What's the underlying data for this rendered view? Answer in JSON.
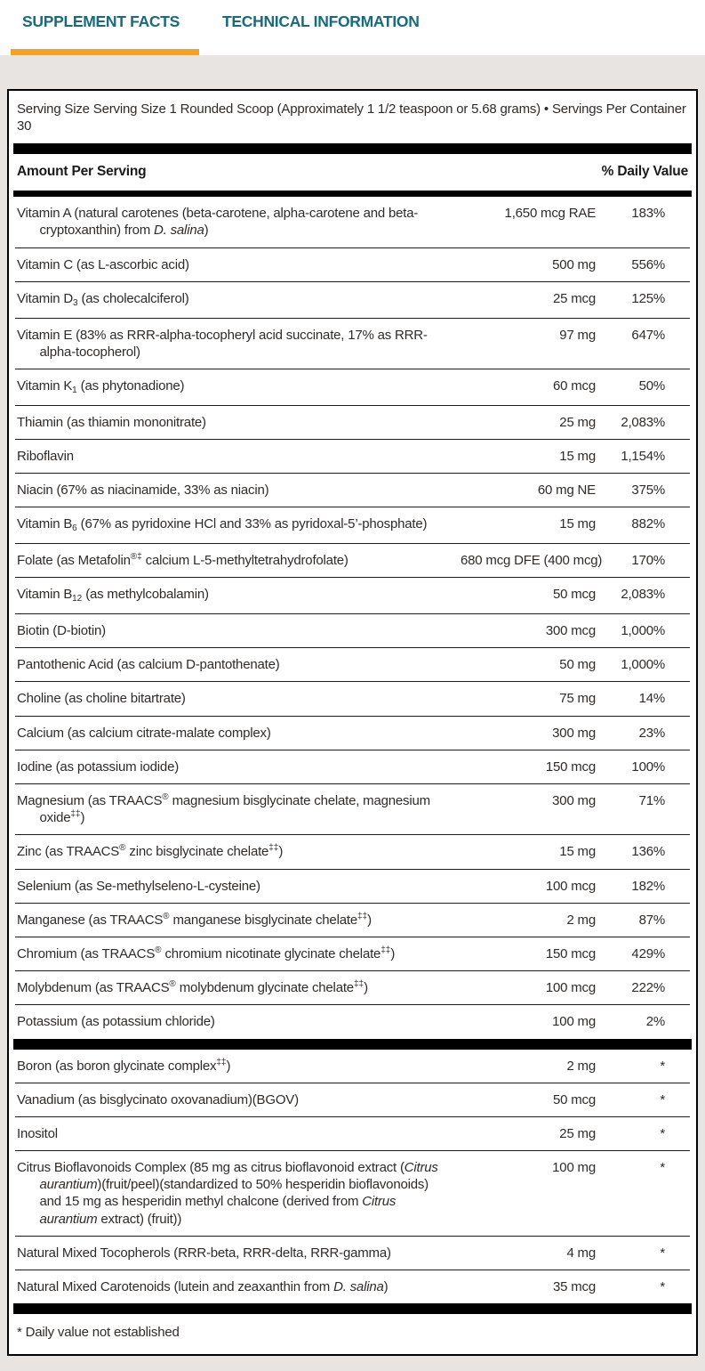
{
  "colors": {
    "tab_text": "#176b7c",
    "active_tab_underline": "#f5a31b",
    "panel_background": "#e8e4e1",
    "table_border": "#000000"
  },
  "tabs": [
    {
      "label": "SUPPLEMENT FACTS",
      "active": true
    },
    {
      "label": "TECHNICAL INFORMATION",
      "active": false
    }
  ],
  "supplement_facts": {
    "serving_line": "Serving Size Serving Size 1 Rounded Scoop (Approximately 1 1/2 teaspoon or 5.68 grams) • Servings Per Container 30",
    "header": {
      "amount_label": "Amount Per Serving",
      "dv_label": "% Daily Value"
    },
    "main_rows": [
      {
        "name_parts": [
          {
            "t": "Vitamin A (natural carotenes (beta-carotene, alpha-carotene and beta-cryptoxanthin) from "
          },
          {
            "t": "D. salina",
            "s": "i"
          },
          {
            "t": ")"
          }
        ],
        "amount": "1,650 mcg RAE",
        "dv": "183%"
      },
      {
        "name_parts": [
          {
            "t": "Vitamin C (as L-ascorbic acid)"
          }
        ],
        "amount": "500 mg",
        "dv": "556%"
      },
      {
        "name_parts": [
          {
            "t": "Vitamin D"
          },
          {
            "t": "3",
            "s": "sub"
          },
          {
            "t": " (as cholecalciferol)"
          }
        ],
        "amount": "25 mcg",
        "dv": "125%"
      },
      {
        "name_parts": [
          {
            "t": "Vitamin E (83% as RRR-alpha-tocopheryl acid succinate, 17% as RRR-alpha-tocopherol)"
          }
        ],
        "amount": "97 mg",
        "dv": "647%"
      },
      {
        "name_parts": [
          {
            "t": "Vitamin K"
          },
          {
            "t": "1",
            "s": "sub"
          },
          {
            "t": " (as phytonadione)"
          }
        ],
        "amount": "60 mcg",
        "dv": "50%"
      },
      {
        "name_parts": [
          {
            "t": "Thiamin (as thiamin mononitrate)"
          }
        ],
        "amount": "25 mg",
        "dv": "2,083%"
      },
      {
        "name_parts": [
          {
            "t": "Riboflavin"
          }
        ],
        "amount": "15 mg",
        "dv": "1,154%"
      },
      {
        "name_parts": [
          {
            "t": "Niacin (67% as niacinamide, 33% as niacin)"
          }
        ],
        "amount": "60 mg NE",
        "dv": "375%"
      },
      {
        "name_parts": [
          {
            "t": "Vitamin B"
          },
          {
            "t": "6",
            "s": "sub"
          },
          {
            "t": " (67% as pyridoxine HCl and 33% as pyridoxal-5’-phosphate)"
          }
        ],
        "amount": "15 mg",
        "dv": "882%"
      },
      {
        "name_parts": [
          {
            "t": "Folate (as Metafolin"
          },
          {
            "t": "®‡",
            "s": "sup"
          },
          {
            "t": " calcium L-5-methyltetrahydrofolate)"
          }
        ],
        "amount": "680 mcg DFE (400 mcg)",
        "dv": "170%"
      },
      {
        "name_parts": [
          {
            "t": "Vitamin B"
          },
          {
            "t": "12",
            "s": "sub"
          },
          {
            "t": " (as methylcobalamin)"
          }
        ],
        "amount": "50 mcg",
        "dv": "2,083%"
      },
      {
        "name_parts": [
          {
            "t": "Biotin (D-biotin)"
          }
        ],
        "amount": "300 mcg",
        "dv": "1,000%"
      },
      {
        "name_parts": [
          {
            "t": "Pantothenic Acid (as calcium D-pantothenate)"
          }
        ],
        "amount": "50 mg",
        "dv": "1,000%"
      },
      {
        "name_parts": [
          {
            "t": "Choline (as choline bitartrate)"
          }
        ],
        "amount": "75 mg",
        "dv": "14%"
      },
      {
        "name_parts": [
          {
            "t": "Calcium (as calcium citrate-malate complex)"
          }
        ],
        "amount": "300 mg",
        "dv": "23%"
      },
      {
        "name_parts": [
          {
            "t": "Iodine (as potassium iodide)"
          }
        ],
        "amount": "150 mcg",
        "dv": "100%"
      },
      {
        "name_parts": [
          {
            "t": "Magnesium (as TRAACS"
          },
          {
            "t": "®",
            "s": "sup"
          },
          {
            "t": " magnesium bisglycinate chelate, magnesium oxide"
          },
          {
            "t": "‡‡",
            "s": "sup"
          },
          {
            "t": ")"
          }
        ],
        "amount": "300 mg",
        "dv": "71%"
      },
      {
        "name_parts": [
          {
            "t": "Zinc (as TRAACS"
          },
          {
            "t": "®",
            "s": "sup"
          },
          {
            "t": " zinc bisglycinate chelate"
          },
          {
            "t": "‡‡",
            "s": "sup"
          },
          {
            "t": ")"
          }
        ],
        "amount": "15 mg",
        "dv": "136%"
      },
      {
        "name_parts": [
          {
            "t": "Selenium (as Se-methylseleno-L-cysteine)"
          }
        ],
        "amount": "100 mcg",
        "dv": "182%"
      },
      {
        "name_parts": [
          {
            "t": "Manganese (as TRAACS"
          },
          {
            "t": "®",
            "s": "sup"
          },
          {
            "t": " manganese bisglycinate chelate"
          },
          {
            "t": "‡‡",
            "s": "sup"
          },
          {
            "t": ")"
          }
        ],
        "amount": "2 mg",
        "dv": "87%"
      },
      {
        "name_parts": [
          {
            "t": "Chromium (as TRAACS"
          },
          {
            "t": "®",
            "s": "sup"
          },
          {
            "t": " chromium nicotinate glycinate chelate"
          },
          {
            "t": "‡‡",
            "s": "sup"
          },
          {
            "t": ")"
          }
        ],
        "amount": "150 mcg",
        "dv": "429%"
      },
      {
        "name_parts": [
          {
            "t": "Molybdenum (as TRAACS"
          },
          {
            "t": "®",
            "s": "sup"
          },
          {
            "t": " molybdenum glycinate chelate"
          },
          {
            "t": "‡‡",
            "s": "sup"
          },
          {
            "t": ")"
          }
        ],
        "amount": "100 mcg",
        "dv": "222%"
      },
      {
        "name_parts": [
          {
            "t": "Potassium (as potassium chloride)"
          }
        ],
        "amount": "100 mg",
        "dv": "2%"
      }
    ],
    "secondary_rows": [
      {
        "name_parts": [
          {
            "t": "Boron (as boron glycinate complex"
          },
          {
            "t": "‡‡",
            "s": "sup"
          },
          {
            "t": ")"
          }
        ],
        "amount": "2 mg",
        "dv": "*"
      },
      {
        "name_parts": [
          {
            "t": "Vanadium (as bisglycinato oxovanadium)(BGOV)"
          }
        ],
        "amount": "50 mcg",
        "dv": "*"
      },
      {
        "name_parts": [
          {
            "t": "Inositol"
          }
        ],
        "amount": "25 mg",
        "dv": "*"
      },
      {
        "name_parts": [
          {
            "t": "Citrus Bioflavonoids Complex (85 mg as citrus bioflavonoid extract ("
          },
          {
            "t": "Citrus aurantium",
            "s": "i"
          },
          {
            "t": ")(fruit/peel)(standardized to 50% hesperidin bioflavonoids) and 15 mg as hesperidin methyl chalcone (derived from "
          },
          {
            "t": "Citrus aurantium",
            "s": "i"
          },
          {
            "t": " extract) (fruit))"
          }
        ],
        "amount": "100 mg",
        "dv": "*"
      },
      {
        "name_parts": [
          {
            "t": "Natural Mixed Tocopherols (RRR-beta, RRR-delta, RRR-gamma)"
          }
        ],
        "amount": "4 mg",
        "dv": "*"
      },
      {
        "name_parts": [
          {
            "t": "Natural Mixed Carotenoids (lutein and zeaxanthin from "
          },
          {
            "t": "D. salina",
            "s": "i"
          },
          {
            "t": ")"
          }
        ],
        "amount": "35 mcg",
        "dv": "*"
      }
    ],
    "footnote": "* Daily value not established"
  }
}
